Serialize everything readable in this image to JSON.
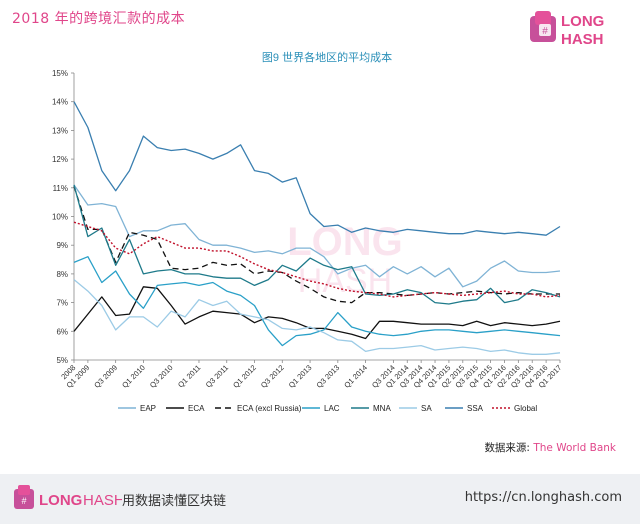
{
  "header": {
    "title": "2018 年的跨境汇款的成本",
    "brand_top": "LONG",
    "brand_bottom": "HASH"
  },
  "chart_data": {
    "type": "line",
    "title": "图9 世界各地区的平均成本",
    "watermark": [
      "LONG",
      "HASH"
    ],
    "xlabel": "",
    "ylabel": "",
    "ylim": [
      5,
      15
    ],
    "y_ticks": [
      "5%",
      "6%",
      "7%",
      "8%",
      "9%",
      "10%",
      "11%",
      "12%",
      "13%",
      "14%",
      "15%"
    ],
    "x_tick_labels": [
      "2008",
      "Q1 2009",
      "Q3 2009",
      "Q1 2010",
      "Q3 2010",
      "Q1 2011",
      "Q3 2011",
      "Q1 2012",
      "Q3 2012",
      "Q1 2013",
      "Q3 2013",
      "Q1 2014",
      "Q3 2014",
      "Q1 2014",
      "Q3 2014",
      "Q4 2014",
      "Q1 2015",
      "Q2 2015",
      "Q3 2015",
      "Q4 2015",
      "Q1 2016",
      "Q2 2016",
      "Q3 2016",
      "Q4 2016",
      "Q1 2017"
    ],
    "x_tick_positions": [
      0,
      1,
      3,
      5,
      7,
      9,
      11,
      13,
      15,
      17,
      19,
      21,
      23,
      24,
      25,
      26,
      27,
      28,
      29,
      30,
      31,
      32,
      33,
      34,
      35
    ],
    "x_count": 36,
    "grid": false,
    "legend_position": "bottom",
    "series": [
      {
        "name": "EAP",
        "color": "#7fb3d5",
        "dash": "",
        "values": [
          11.1,
          10.4,
          10.45,
          10.35,
          9.3,
          9.5,
          9.5,
          9.7,
          9.75,
          9.2,
          9.0,
          9.0,
          8.9,
          8.75,
          8.8,
          8.7,
          8.9,
          8.9,
          8.6,
          8.0,
          8.2,
          8.3,
          7.9,
          8.25,
          8.0,
          8.25,
          7.9,
          8.2,
          7.55,
          7.75,
          8.2,
          8.45,
          8.1,
          8.05,
          8.05,
          8.1
        ]
      },
      {
        "name": "ECA",
        "color": "#111111",
        "dash": "",
        "values": [
          6.0,
          6.6,
          7.2,
          6.55,
          6.6,
          7.55,
          7.5,
          6.9,
          6.25,
          6.5,
          6.7,
          6.65,
          6.6,
          6.3,
          6.5,
          6.45,
          6.3,
          6.1,
          6.1,
          6.0,
          5.9,
          5.75,
          6.35,
          6.35,
          6.3,
          6.25,
          6.25,
          6.25,
          6.2,
          6.35,
          6.2,
          6.3,
          6.25,
          6.2,
          6.25,
          6.35
        ]
      },
      {
        "name": "ECA (excl Russia)",
        "color": "#111111",
        "dash": "6,4",
        "values": [
          11.05,
          9.55,
          9.55,
          8.4,
          9.45,
          9.35,
          9.2,
          8.2,
          8.15,
          8.2,
          8.4,
          8.3,
          8.35,
          8.0,
          8.1,
          8.05,
          7.75,
          7.5,
          7.2,
          7.05,
          7.0,
          7.35,
          7.35,
          7.3,
          7.25,
          7.3,
          7.35,
          7.3,
          7.35,
          7.4,
          7.35,
          7.3,
          7.35,
          7.3,
          7.3,
          7.3
        ]
      },
      {
        "name": "LAC",
        "color": "#2aa0c8",
        "dash": "",
        "values": [
          8.4,
          8.6,
          7.7,
          8.1,
          7.3,
          6.8,
          7.6,
          7.65,
          7.7,
          7.6,
          7.7,
          7.4,
          7.25,
          6.9,
          6.05,
          5.5,
          5.85,
          5.9,
          6.05,
          6.65,
          6.15,
          6.0,
          5.9,
          5.85,
          5.9,
          6.0,
          6.05,
          6.05,
          6.0,
          5.95,
          6.0,
          6.05,
          6.0,
          5.95,
          5.9,
          5.85
        ]
      },
      {
        "name": "MNA",
        "color": "#1e7a8a",
        "dash": "",
        "values": [
          11.1,
          9.3,
          9.6,
          8.3,
          9.2,
          8.0,
          8.1,
          8.15,
          8.0,
          8.0,
          7.9,
          7.85,
          7.85,
          7.6,
          7.8,
          8.3,
          8.1,
          8.55,
          8.3,
          8.15,
          8.25,
          7.3,
          7.25,
          7.3,
          7.45,
          7.35,
          7.0,
          6.95,
          7.05,
          7.1,
          7.5,
          7.0,
          7.1,
          7.45,
          7.35,
          7.2
        ]
      },
      {
        "name": "SA",
        "color": "#9ccbe6",
        "dash": "",
        "values": [
          7.8,
          7.4,
          6.9,
          6.05,
          6.5,
          6.5,
          6.15,
          6.7,
          6.5,
          7.1,
          6.9,
          7.05,
          6.6,
          6.5,
          6.4,
          6.1,
          6.05,
          6.15,
          5.95,
          5.7,
          5.65,
          5.3,
          5.4,
          5.4,
          5.45,
          5.5,
          5.35,
          5.4,
          5.45,
          5.4,
          5.3,
          5.35,
          5.25,
          5.2,
          5.2,
          5.25
        ]
      },
      {
        "name": "SSA",
        "color": "#3a7fb0",
        "dash": "",
        "values": [
          14.0,
          13.1,
          11.6,
          10.9,
          11.6,
          12.8,
          12.4,
          12.3,
          12.35,
          12.2,
          12.0,
          12.2,
          12.5,
          11.6,
          11.5,
          11.2,
          11.35,
          10.1,
          9.65,
          9.7,
          9.45,
          9.6,
          9.5,
          9.45,
          9.55,
          9.5,
          9.45,
          9.4,
          9.4,
          9.5,
          9.45,
          9.4,
          9.45,
          9.4,
          9.35,
          9.65
        ]
      },
      {
        "name": "Global",
        "color": "#c0102a",
        "dash": "2,2",
        "values": [
          9.8,
          9.65,
          9.5,
          8.9,
          8.7,
          9.05,
          9.3,
          9.1,
          8.9,
          8.9,
          8.8,
          8.8,
          8.6,
          8.35,
          8.15,
          8.05,
          7.9,
          7.75,
          7.65,
          7.5,
          7.4,
          7.35,
          7.3,
          7.2,
          7.25,
          7.3,
          7.35,
          7.3,
          7.25,
          7.3,
          7.35,
          7.4,
          7.3,
          7.3,
          7.2,
          7.25
        ]
      }
    ]
  },
  "source": {
    "label": "数据来源: ",
    "value": "The World Bank"
  },
  "footer": {
    "brand_long": "LONG",
    "brand_hash": "HASH",
    "slogan": "用数据读懂区块链",
    "url": "https://cn.longhash.com"
  }
}
